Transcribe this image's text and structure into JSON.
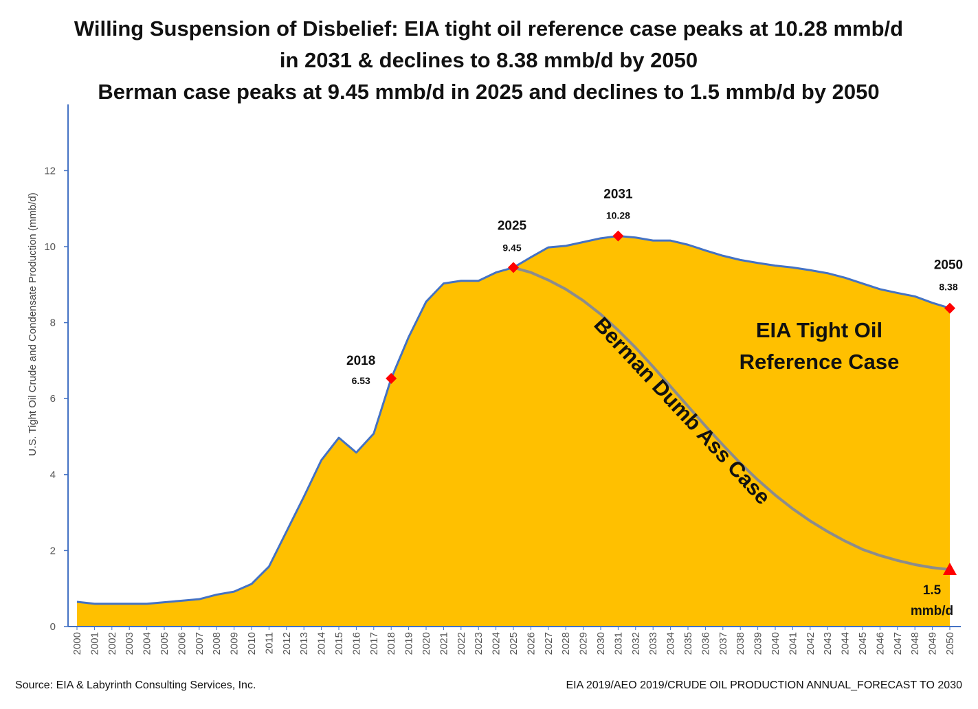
{
  "chart_data": {
    "type": "area",
    "title_lines": [
      "Willing Suspension of Disbelief:  EIA tight oil reference case peaks at 10.28 mmb/d",
      "in 2031 & declines to 8.38 mmb/d by 2050",
      "Berman case peaks at 9.45 mmb/d in 2025 and declines to 1.5 mmb/d by 2050"
    ],
    "ylabel": "U.S. Tight Oil  Crude and Condensate  Production  (mmb/d)",
    "xlabel": "",
    "ylim": [
      0,
      14
    ],
    "yticks": [
      0,
      2,
      4,
      6,
      8,
      10,
      12
    ],
    "grid": false,
    "colors": {
      "area_fill": "#FFC000",
      "area_line": "#4472C4",
      "berman_line": "#8C8C8C",
      "marker": "#FF0000",
      "axis": "#4472C4"
    },
    "x": [
      2000,
      2001,
      2002,
      2003,
      2004,
      2005,
      2006,
      2007,
      2008,
      2009,
      2010,
      2011,
      2012,
      2013,
      2014,
      2015,
      2016,
      2017,
      2018,
      2019,
      2020,
      2021,
      2022,
      2023,
      2024,
      2025,
      2026,
      2027,
      2028,
      2029,
      2030,
      2031,
      2032,
      2033,
      2034,
      2035,
      2036,
      2037,
      2038,
      2039,
      2040,
      2041,
      2042,
      2043,
      2044,
      2045,
      2046,
      2047,
      2048,
      2049,
      2050
    ],
    "series": [
      {
        "name": "EIA Tight Oil Reference Case",
        "values": [
          0.65,
          0.6,
          0.6,
          0.6,
          0.6,
          0.64,
          0.68,
          0.72,
          0.84,
          0.92,
          1.12,
          1.58,
          2.5,
          3.42,
          4.38,
          4.97,
          4.58,
          5.08,
          6.53,
          7.62,
          8.55,
          9.03,
          9.1,
          9.1,
          9.32,
          9.45,
          9.72,
          9.98,
          10.02,
          10.12,
          10.22,
          10.28,
          10.24,
          10.16,
          10.16,
          10.05,
          9.9,
          9.76,
          9.65,
          9.57,
          9.5,
          9.45,
          9.38,
          9.3,
          9.18,
          9.03,
          8.88,
          8.78,
          8.69,
          8.52,
          8.38
        ]
      },
      {
        "name": "Berman Dumb Ass Case",
        "x": [
          2025,
          2026,
          2027,
          2028,
          2029,
          2030,
          2031,
          2032,
          2033,
          2034,
          2035,
          2036,
          2037,
          2038,
          2039,
          2040,
          2041,
          2042,
          2043,
          2044,
          2045,
          2046,
          2047,
          2048,
          2049,
          2050
        ],
        "values": [
          9.45,
          9.32,
          9.12,
          8.88,
          8.58,
          8.22,
          7.8,
          7.34,
          6.84,
          6.32,
          5.8,
          5.28,
          4.78,
          4.3,
          3.86,
          3.46,
          3.1,
          2.78,
          2.5,
          2.25,
          2.03,
          1.87,
          1.74,
          1.63,
          1.55,
          1.5
        ]
      }
    ],
    "series_labels": {
      "eia": [
        "EIA Tight Oil",
        "Reference Case"
      ],
      "berman": "Berman Dumb Ass Case"
    },
    "annotations": [
      {
        "year_label": "2018",
        "value_label": "6.53",
        "x": 2018,
        "y": 6.53,
        "marker": "diamond"
      },
      {
        "year_label": "2025",
        "value_label": "9.45",
        "x": 2025,
        "y": 9.45,
        "marker": "diamond"
      },
      {
        "year_label": "2031",
        "value_label": "10.28",
        "x": 2031,
        "y": 10.28,
        "marker": "diamond"
      },
      {
        "year_label": "2050",
        "value_label": "8.38",
        "x": 2050,
        "y": 8.38,
        "marker": "diamond"
      },
      {
        "lines": [
          "1.5",
          "mmb/d"
        ],
        "x": 2050,
        "y": 1.5,
        "marker": "triangle"
      }
    ]
  },
  "footer": {
    "source": "Source:  EIA & Labyrinth Consulting  Services, Inc.",
    "reference": "EIA 2019/AEO 2019/CRUDE OIL PRODUCTION ANNUAL_FORECAST TO 2030"
  }
}
